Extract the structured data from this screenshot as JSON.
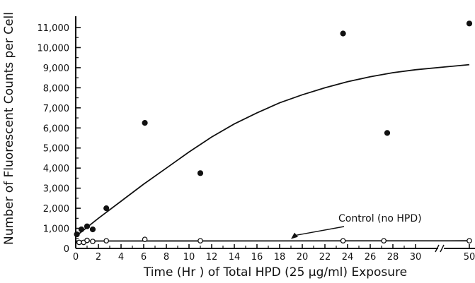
{
  "chart_data": {
    "type": "scatter",
    "title": "",
    "xlabel": "Time (Hr ) of Total HPD (25 µg/ml) Exposure",
    "ylabel": "Number of Fluorescent Counts per Cell",
    "xlim": [
      0,
      51
    ],
    "ylim": [
      0,
      11500
    ],
    "grid": false,
    "x_ticks": [
      0,
      2,
      4,
      6,
      8,
      10,
      12,
      14,
      16,
      18,
      20,
      22,
      24,
      26,
      28,
      30,
      50
    ],
    "x_tick_labels": [
      "0",
      "2",
      "4",
      "6",
      "8",
      "10",
      "12",
      "14",
      "16",
      "18",
      "20",
      "22",
      "24",
      "26",
      "28",
      "30",
      "50"
    ],
    "y_ticks": [
      0,
      1000,
      2000,
      3000,
      4000,
      5000,
      6000,
      7000,
      8000,
      9000,
      10000,
      11000
    ],
    "y_tick_labels": [
      "0",
      "1,000",
      "2,000",
      "3,000",
      "4,000",
      "5,000",
      "6,000",
      "7,000",
      "8,000",
      "9,000",
      "10,000",
      "11,000"
    ],
    "axis_break": [
      30,
      50
    ],
    "series": [
      {
        "marker": "filled-circle",
        "points": [
          {
            "x": 0.1,
            "y": 700
          },
          {
            "x": 0.5,
            "y": 950
          },
          {
            "x": 1.0,
            "y": 1100
          },
          {
            "x": 1.5,
            "y": 950
          },
          {
            "x": 2.7,
            "y": 2000
          },
          {
            "x": 6.1,
            "y": 6250
          },
          {
            "x": 11.0,
            "y": 3750
          },
          {
            "x": 23.6,
            "y": 10700
          },
          {
            "x": 27.5,
            "y": 5750
          },
          {
            "x": 50.0,
            "y": 11200
          }
        ],
        "fit_curve": [
          {
            "x": 0,
            "y": 600
          },
          {
            "x": 2,
            "y": 1500
          },
          {
            "x": 4,
            "y": 2350
          },
          {
            "x": 6,
            "y": 3200
          },
          {
            "x": 8,
            "y": 4000
          },
          {
            "x": 10,
            "y": 4800
          },
          {
            "x": 12,
            "y": 5550
          },
          {
            "x": 14,
            "y": 6200
          },
          {
            "x": 16,
            "y": 6750
          },
          {
            "x": 18,
            "y": 7250
          },
          {
            "x": 20,
            "y": 7650
          },
          {
            "x": 22,
            "y": 8000
          },
          {
            "x": 24,
            "y": 8300
          },
          {
            "x": 26,
            "y": 8550
          },
          {
            "x": 28,
            "y": 8750
          },
          {
            "x": 30,
            "y": 8900
          },
          {
            "x": 50,
            "y": 9150
          }
        ]
      },
      {
        "marker": "open-circle",
        "points": [
          {
            "x": 0.3,
            "y": 300
          },
          {
            "x": 0.7,
            "y": 300
          },
          {
            "x": 1.0,
            "y": 400
          },
          {
            "x": 1.5,
            "y": 350
          },
          {
            "x": 2.7,
            "y": 380
          },
          {
            "x": 6.1,
            "y": 450
          },
          {
            "x": 11.0,
            "y": 380
          },
          {
            "x": 23.6,
            "y": 380
          },
          {
            "x": 27.2,
            "y": 380
          },
          {
            "x": 50.0,
            "y": 380
          }
        ],
        "fit_curve": [
          {
            "x": 0,
            "y": 370
          },
          {
            "x": 50,
            "y": 380
          }
        ]
      }
    ],
    "annotations": [
      {
        "text": "Control (no HPD)",
        "points_to": {
          "x": 19,
          "y": 400
        }
      }
    ],
    "colors": {
      "ink": "#111111",
      "background": "#ffffff"
    }
  }
}
